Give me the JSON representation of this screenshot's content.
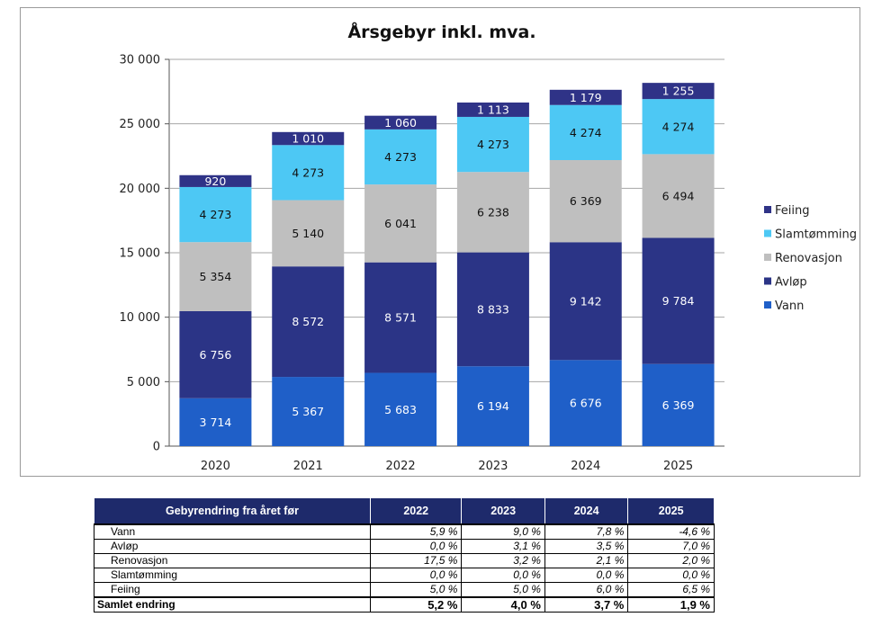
{
  "chart_data": {
    "type": "bar",
    "stacked": true,
    "title": "Årsgebyr inkl. mva.",
    "categories": [
      "2020",
      "2021",
      "2022",
      "2023",
      "2024",
      "2025"
    ],
    "ylim": [
      0,
      30000
    ],
    "yticks": [
      0,
      5000,
      10000,
      15000,
      20000,
      25000,
      30000
    ],
    "ytick_labels": [
      "0",
      "5 000",
      "10 000",
      "15 000",
      "20 000",
      "25 000",
      "30 000"
    ],
    "series": [
      {
        "name": "Vann",
        "color": "#1f5fc8",
        "label_color": "#ffffff",
        "values": [
          3714,
          5367,
          5683,
          6194,
          6676,
          6369
        ],
        "labels": [
          "3 714",
          "5 367",
          "5 683",
          "6 194",
          "6 676",
          "6 369"
        ]
      },
      {
        "name": "Avløp",
        "color": "#2b3486",
        "label_color": "#ffffff",
        "values": [
          6756,
          8572,
          8571,
          8833,
          9142,
          9784
        ],
        "labels": [
          "6 756",
          "8 572",
          "8 571",
          "8 833",
          "9 142",
          "9 784"
        ]
      },
      {
        "name": "Renovasjon",
        "color": "#bfbfbf",
        "label_color": "#111111",
        "values": [
          5354,
          5140,
          6041,
          6238,
          6369,
          6494
        ],
        "labels": [
          "5 354",
          "5 140",
          "6 041",
          "6 238",
          "6 369",
          "6 494"
        ]
      },
      {
        "name": "Slamtømming",
        "color": "#4dc8f4",
        "label_color": "#111111",
        "values": [
          4273,
          4273,
          4273,
          4273,
          4274,
          4274
        ],
        "labels": [
          "4 273",
          "4 273",
          "4 273",
          "4 273",
          "4 274",
          "4 274"
        ]
      },
      {
        "name": "Feiing",
        "color": "#2f3387",
        "label_color": "#ffffff",
        "values": [
          920,
          1010,
          1060,
          1113,
          1179,
          1255
        ],
        "labels": [
          "920",
          "1 010",
          "1 060",
          "1 113",
          "1 179",
          "1 255"
        ]
      }
    ],
    "legend_order": [
      "Feiing",
      "Slamtømming",
      "Renovasjon",
      "Avløp",
      "Vann"
    ],
    "legend_position": "right"
  },
  "table": {
    "header": [
      "Gebyrendring fra året før",
      "2022",
      "2023",
      "2024",
      "2025"
    ],
    "rows": [
      {
        "label": "Vann",
        "values": [
          "5,9 %",
          "9,0 %",
          "7,8 %",
          "-4,6 %"
        ]
      },
      {
        "label": "Avløp",
        "values": [
          "0,0 %",
          "3,1 %",
          "3,5 %",
          "7,0 %"
        ]
      },
      {
        "label": "Renovasjon",
        "values": [
          "17,5 %",
          "3,2 %",
          "2,1 %",
          "2,0 %"
        ]
      },
      {
        "label": "Slamtømming",
        "values": [
          "0,0 %",
          "0,0 %",
          "0,0 %",
          "0,0 %"
        ]
      },
      {
        "label": "Feiing",
        "values": [
          "5,0 %",
          "5,0 %",
          "6,0 %",
          "6,5 %"
        ]
      }
    ],
    "total": {
      "label": "Samlet endring",
      "values": [
        "5,2 %",
        "4,0 %",
        "3,7 %",
        "1,9 %"
      ]
    }
  }
}
